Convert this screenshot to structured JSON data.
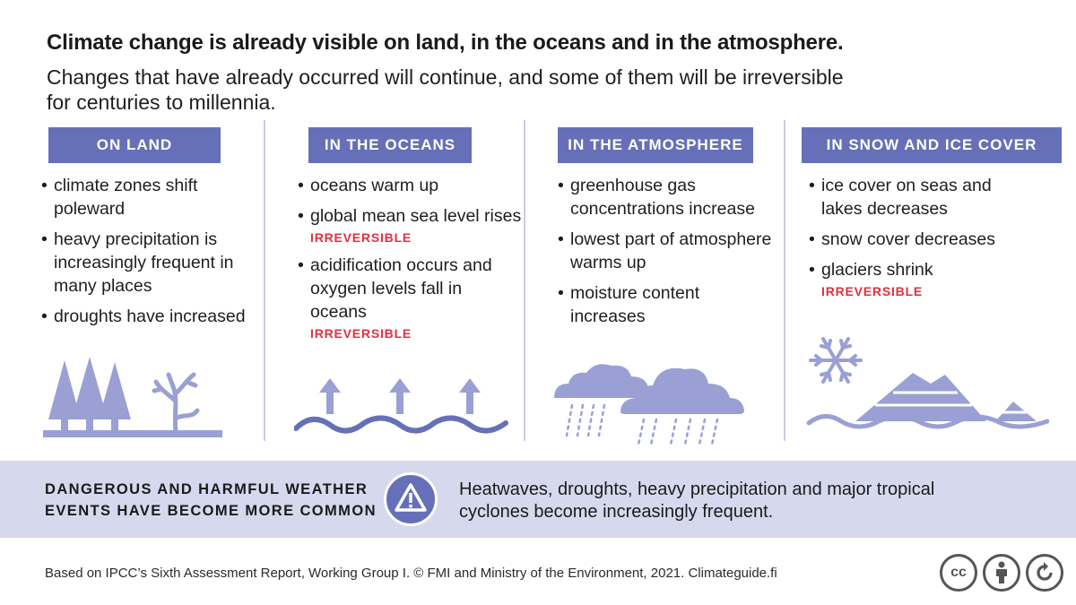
{
  "header": {
    "title": "Climate change is already visible on land, in the oceans and in the atmosphere.",
    "subtitle_line1": "Changes that have already occurred will continue, and some of them will be irreversible",
    "subtitle_line2": "for centuries to millennia."
  },
  "columns": [
    {
      "heading": "ON LAND",
      "items": [
        {
          "text": "climate zones shift poleward",
          "tag": ""
        },
        {
          "text": "heavy precipitation is increasingly frequent in many places",
          "tag": ""
        },
        {
          "text": "droughts have increased",
          "tag": ""
        }
      ],
      "icon": "trees-and-dry-tree-icon"
    },
    {
      "heading": "IN THE OCEANS",
      "items": [
        {
          "text": "oceans warm up",
          "tag": ""
        },
        {
          "text": "global mean sea level rises",
          "tag": "IRREVERSIBLE"
        },
        {
          "text": "acidification occurs and oxygen levels fall in oceans",
          "tag": "IRREVERSIBLE"
        }
      ],
      "icon": "rising-waves-icon"
    },
    {
      "heading": "IN THE ATMOSPHERE",
      "items": [
        {
          "text": "greenhouse gas concentrations increase",
          "tag": ""
        },
        {
          "text": "lowest part of atmosphere warms up",
          "tag": ""
        },
        {
          "text": "moisture content increases",
          "tag": ""
        }
      ],
      "icon": "rain-clouds-icon"
    },
    {
      "heading": "IN SNOW AND ICE COVER",
      "items": [
        {
          "text": "ice cover on seas and lakes decreases",
          "tag": ""
        },
        {
          "text": "snow cover decreases",
          "tag": ""
        },
        {
          "text": "glaciers shrink",
          "tag": "IRREVERSIBLE"
        }
      ],
      "icon": "snowflake-and-glaciers-icon"
    }
  ],
  "band": {
    "left_line1": "DANGEROUS AND HARMFUL WEATHER",
    "left_line2": "EVENTS HAVE BECOME MORE COMMON",
    "right_line1": "Heatwaves, droughts, heavy precipitation and major tropical",
    "right_line2": "cyclones become increasingly frequent.",
    "icon": "warning-icon"
  },
  "footer": {
    "credit": "Based on IPCC’s Sixth Assessment Report, Working Group I. © FMI and Ministry of the Environment, 2021. Climateguide.fi",
    "license_icons": [
      "cc-icon",
      "attribution-icon",
      "share-alike-icon"
    ],
    "cc_label": "cc"
  },
  "colors": {
    "accent": "#6670b8",
    "icon_fill": "#9aa0d4",
    "irreversible": "#e0313f",
    "band_bg": "#d6d9ee"
  }
}
